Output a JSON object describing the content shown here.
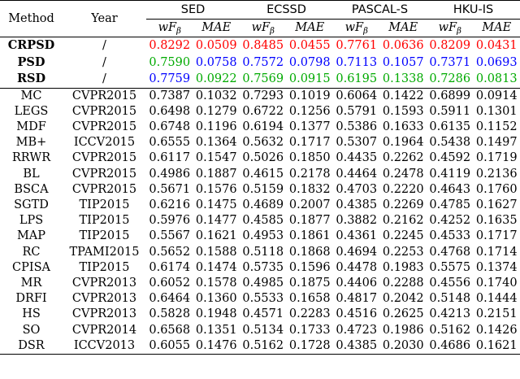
{
  "header": {
    "method": "Method",
    "year": "Year",
    "datasets": [
      "SED",
      "ECSSD",
      "PASCAL-S",
      "HKU-IS"
    ],
    "metric_wf": "wF",
    "metric_wf_sub": "β",
    "metric_mae": "MAE"
  },
  "colors": {
    "first": "#ff0000",
    "second": "#00aa00",
    "third": "#0000ff",
    "text": "#000000"
  },
  "ours": [
    {
      "method": "CRPSD",
      "year": "/",
      "color": "#ff0000",
      "values": [
        "0.8292",
        "0.0509",
        "0.8485",
        "0.0455",
        "0.7761",
        "0.0636",
        "0.8209",
        "0.0431"
      ]
    },
    {
      "method": "PSD",
      "year": "/",
      "color": "#00aa00",
      "values": [
        "0.7590",
        "0.0758",
        "0.7572",
        "0.0798",
        "0.7113",
        "0.1057",
        "0.7371",
        "0.0693"
      ]
    },
    {
      "method": "RSD",
      "year": "/",
      "color": "#0000ff",
      "values": [
        "0.7759",
        "0.0922",
        "0.7569",
        "0.0915",
        "0.6195",
        "0.1338",
        "0.7286",
        "0.0813"
      ]
    }
  ],
  "ours_value_colors": [
    [
      "#ff0000",
      "#ff0000",
      "#ff0000",
      "#ff0000",
      "#ff0000",
      "#ff0000",
      "#ff0000",
      "#ff0000"
    ],
    [
      "#00aa00",
      "#0000ff",
      "#0000ff",
      "#0000ff",
      "#0000ff",
      "#0000ff",
      "#0000ff",
      "#0000ff"
    ],
    [
      "#0000ff",
      "#00aa00",
      "#00aa00",
      "#00aa00",
      "#00aa00",
      "#00aa00",
      "#00aa00",
      "#00aa00"
    ]
  ],
  "rows": [
    {
      "method": "MC",
      "year": "CVPR2015",
      "values": [
        "0.7387",
        "0.1032",
        "0.7293",
        "0.1019",
        "0.6064",
        "0.1422",
        "0.6899",
        "0.0914"
      ]
    },
    {
      "method": "LEGS",
      "year": "CVPR2015",
      "values": [
        "0.6498",
        "0.1279",
        "0.6722",
        "0.1256",
        "0.5791",
        "0.1593",
        "0.5911",
        "0.1301"
      ]
    },
    {
      "method": "MDF",
      "year": "CVPR2015",
      "values": [
        "0.6748",
        "0.1196",
        "0.6194",
        "0.1377",
        "0.5386",
        "0.1633",
        "0.6135",
        "0.1152"
      ]
    },
    {
      "method": "MB+",
      "year": "ICCV2015",
      "values": [
        "0.6555",
        "0.1364",
        "0.5632",
        "0.1717",
        "0.5307",
        "0.1964",
        "0.5438",
        "0.1497"
      ]
    },
    {
      "method": "RRWR",
      "year": "CVPR2015",
      "values": [
        "0.6117",
        "0.1547",
        "0.5026",
        "0.1850",
        "0.4435",
        "0.2262",
        "0.4592",
        "0.1719"
      ]
    },
    {
      "method": "BL",
      "year": "CVPR2015",
      "values": [
        "0.4986",
        "0.1887",
        "0.4615",
        "0.2178",
        "0.4464",
        "0.2478",
        "0.4119",
        "0.2136"
      ]
    },
    {
      "method": "BSCA",
      "year": "CVPR2015",
      "values": [
        "0.5671",
        "0.1576",
        "0.5159",
        "0.1832",
        "0.4703",
        "0.2220",
        "0.4643",
        "0.1760"
      ]
    },
    {
      "method": "SGTD",
      "year": "TIP2015",
      "values": [
        "0.6216",
        "0.1475",
        "0.4689",
        "0.2007",
        "0.4385",
        "0.2269",
        "0.4785",
        "0.1627"
      ]
    },
    {
      "method": "LPS",
      "year": "TIP2015",
      "values": [
        "0.5976",
        "0.1477",
        "0.4585",
        "0.1877",
        "0.3882",
        "0.2162",
        "0.4252",
        "0.1635"
      ]
    },
    {
      "method": "MAP",
      "year": "TIP2015",
      "values": [
        "0.5567",
        "0.1621",
        "0.4953",
        "0.1861",
        "0.4361",
        "0.2245",
        "0.4533",
        "0.1717"
      ]
    },
    {
      "method": "RC",
      "year": "TPAMI2015",
      "values": [
        "0.5652",
        "0.1588",
        "0.5118",
        "0.1868",
        "0.4694",
        "0.2253",
        "0.4768",
        "0.1714"
      ]
    },
    {
      "method": "CPISA",
      "year": "TIP2015",
      "values": [
        "0.6174",
        "0.1474",
        "0.5735",
        "0.1596",
        "0.4478",
        "0.1983",
        "0.5575",
        "0.1374"
      ]
    },
    {
      "method": "MR",
      "year": "CVPR2013",
      "values": [
        "0.6052",
        "0.1578",
        "0.4985",
        "0.1875",
        "0.4406",
        "0.2288",
        "0.4556",
        "0.1740"
      ]
    },
    {
      "method": "DRFI",
      "year": "CVPR2013",
      "values": [
        "0.6464",
        "0.1360",
        "0.5533",
        "0.1658",
        "0.4817",
        "0.2042",
        "0.5148",
        "0.1444"
      ]
    },
    {
      "method": "HS",
      "year": "CVPR2013",
      "values": [
        "0.5828",
        "0.1948",
        "0.4571",
        "0.2283",
        "0.4516",
        "0.2625",
        "0.4213",
        "0.2151"
      ]
    },
    {
      "method": "SO",
      "year": "CVPR2014",
      "values": [
        "0.6568",
        "0.1351",
        "0.5134",
        "0.1733",
        "0.4723",
        "0.1986",
        "0.5162",
        "0.1426"
      ]
    },
    {
      "method": "DSR",
      "year": "ICCV2013",
      "values": [
        "0.6055",
        "0.1476",
        "0.5162",
        "0.1728",
        "0.4385",
        "0.2030",
        "0.4686",
        "0.1621"
      ]
    }
  ]
}
